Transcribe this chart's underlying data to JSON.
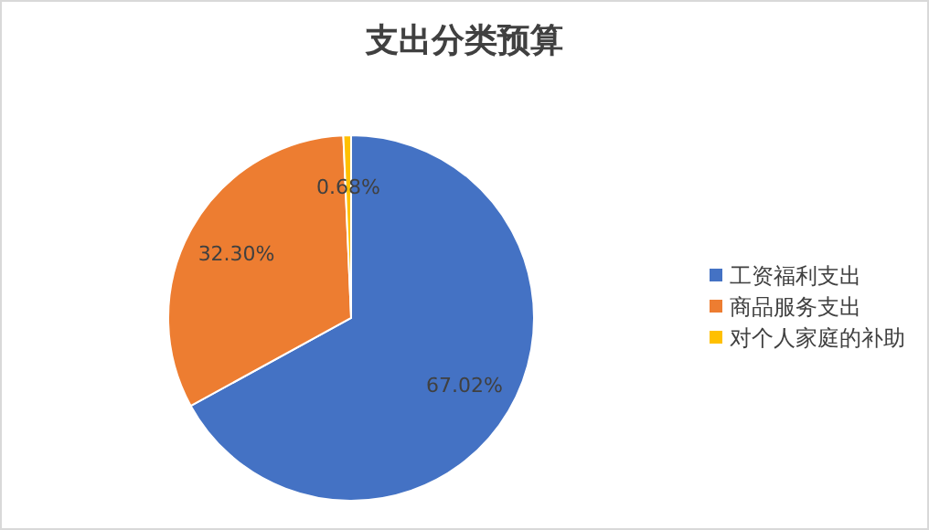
{
  "chart_data": {
    "type": "pie",
    "title": "支出分类预算",
    "categories": [
      "工资福利支出",
      "商品服务支出",
      "对个人家庭的补助"
    ],
    "values": [
      67.02,
      32.3,
      0.68
    ],
    "colors": [
      "#4472c4",
      "#ed7d31",
      "#ffc000"
    ],
    "value_labels": [
      "67.02%",
      "32.30%",
      "0.68%"
    ],
    "legend": "right"
  }
}
